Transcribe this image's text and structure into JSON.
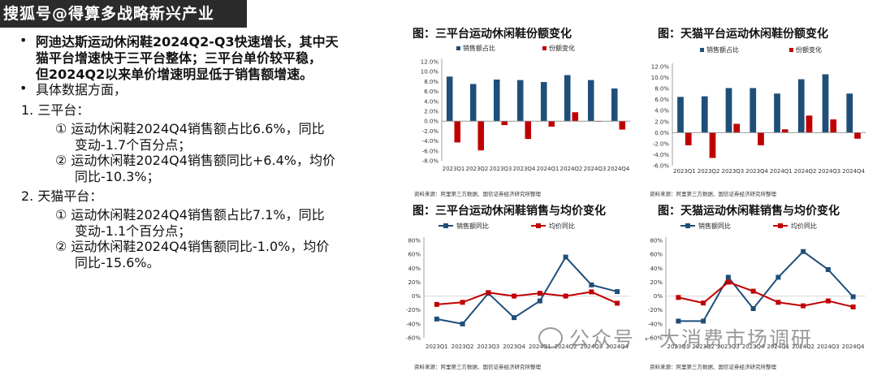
{
  "header": {
    "watermark": "搜狐号@得算多战略新兴产业"
  },
  "text": {
    "bullet1_line1": "阿迪达斯运动休闲鞋2024Q2-Q3快速增长，其中天",
    "bullet1_line2": "猫平台增速快于三平台整体；三平台单价较平稳，",
    "bullet1_line3": "但2024Q2以来单价增速明显低于销售额增速。",
    "bullet2": "具体数据方面，",
    "section1": "1.   三平台：",
    "s1_item1_line1": "①  运动休闲鞋2024Q4销售额占比6.6%，同比",
    "s1_item1_line2": "变动-1.7个百分点；",
    "s1_item2_line1": "②  运动休闲鞋2024Q4销售额同比+6.4%，均价",
    "s1_item2_line2": "同比-10.3%；",
    "section2": "2.   天猫平台：",
    "s2_item1_line1": "①  运动休闲鞋2024Q4销售额占比7.1%，同比",
    "s2_item1_line2": "变动-1.1个百分点；",
    "s2_item2_line1": "②  运动休闲鞋2024Q4销售额同比-1.0%，均价",
    "s2_item2_line2": "同比-15.6%。",
    "bullet_char": "•"
  },
  "footer_watermark": "公众号 · 大消费市场调研",
  "colors": {
    "blue": "#1f4e79",
    "red": "#c00000",
    "grid": "#d9d9d9",
    "axis": "#888888"
  },
  "chart_data": [
    {
      "type": "bar",
      "title": "图：三平台运动休闲鞋份额变化",
      "categories": [
        "2023Q1",
        "2023Q2",
        "2023Q3",
        "2023Q4",
        "2024Q1",
        "2024Q2",
        "2024Q3",
        "2024Q4"
      ],
      "series": [
        {
          "name": "销售额占比",
          "values": [
            9.0,
            7.5,
            8.4,
            8.3,
            7.9,
            9.3,
            8.3,
            6.6
          ]
        },
        {
          "name": "份额变化",
          "values": [
            -4.3,
            -5.9,
            -0.8,
            -3.6,
            -1.1,
            1.8,
            -0.1,
            -1.7
          ]
        }
      ],
      "yticks": [
        "12.0%",
        "10.0%",
        "8.0%",
        "6.0%",
        "4.0%",
        "2.0%",
        "0.0%",
        "-2.0%",
        "-4.0%",
        "-6.0%",
        "-8.0%"
      ],
      "ylim": [
        -8,
        12
      ],
      "source": "资料来源：阿里第三方数据、国信证券经济研究所整理"
    },
    {
      "type": "bar",
      "title": "图：天猫平台运动休闲鞋份额变化",
      "categories": [
        "2023Q1",
        "2023Q2",
        "2023Q3",
        "2023Q4",
        "2024Q1",
        "2024Q2",
        "2024Q3",
        "2024Q4"
      ],
      "series": [
        {
          "name": "销售额占比",
          "values": [
            6.5,
            6.6,
            8.1,
            8.1,
            7.1,
            9.7,
            10.6,
            7.1
          ]
        },
        {
          "name": "份额变化",
          "values": [
            -2.3,
            -4.6,
            1.6,
            -2.3,
            0.6,
            3.1,
            2.4,
            -1.1
          ]
        }
      ],
      "yticks": [
        "12.0%",
        "10.0%",
        "8.0%",
        "6.0%",
        "4.0%",
        "2.0%",
        "0.0%",
        "-2.0%",
        "-4.0%",
        "-6.0%"
      ],
      "ylim": [
        -6,
        12
      ],
      "source": "资料来源：阿里第三方数据、国信证券经济研究所整理"
    },
    {
      "type": "line",
      "title": "图：三平台运动休闲鞋销售与均价变化",
      "categories": [
        "2023Q1",
        "2023Q2",
        "2023Q3",
        "2023Q4",
        "2024Q1",
        "2024Q2",
        "2024Q3",
        "2024Q4"
      ],
      "series": [
        {
          "name": "销售额同比",
          "values": [
            -33,
            -40,
            4,
            -31,
            -7,
            56,
            16,
            6.4
          ]
        },
        {
          "name": "均价同比",
          "values": [
            -12,
            -9,
            5,
            0,
            4,
            0,
            6,
            -10.3
          ]
        }
      ],
      "yticks": [
        "80%",
        "60%",
        "40%",
        "20%",
        "0%",
        "-20%",
        "-40%",
        "-60%"
      ],
      "ylim": [
        -60,
        80
      ],
      "source": "资料来源：阿里第三方数据、国信证券经济研究所整理"
    },
    {
      "type": "line",
      "title": "图：天猫运动休闲鞋销售与均价变化",
      "categories": [
        "2023Q1",
        "2023Q2",
        "2023Q3",
        "2023Q4",
        "2024Q1",
        "2024Q2",
        "2024Q3",
        "2024Q4"
      ],
      "series": [
        {
          "name": "销售额同比",
          "values": [
            -36,
            -36,
            27,
            -18,
            27,
            64,
            38,
            -1.0
          ]
        },
        {
          "name": "均价同比",
          "values": [
            -2,
            -10,
            20,
            7,
            -9,
            -14,
            -7,
            -15.6
          ]
        }
      ],
      "yticks": [
        "80%",
        "60%",
        "40%",
        "20%",
        "0%",
        "-20%",
        "-40%",
        "-60%"
      ],
      "ylim": [
        -60,
        80
      ],
      "source": "资料来源：阿里第三方数据、国信证券经济研究所整理"
    }
  ]
}
